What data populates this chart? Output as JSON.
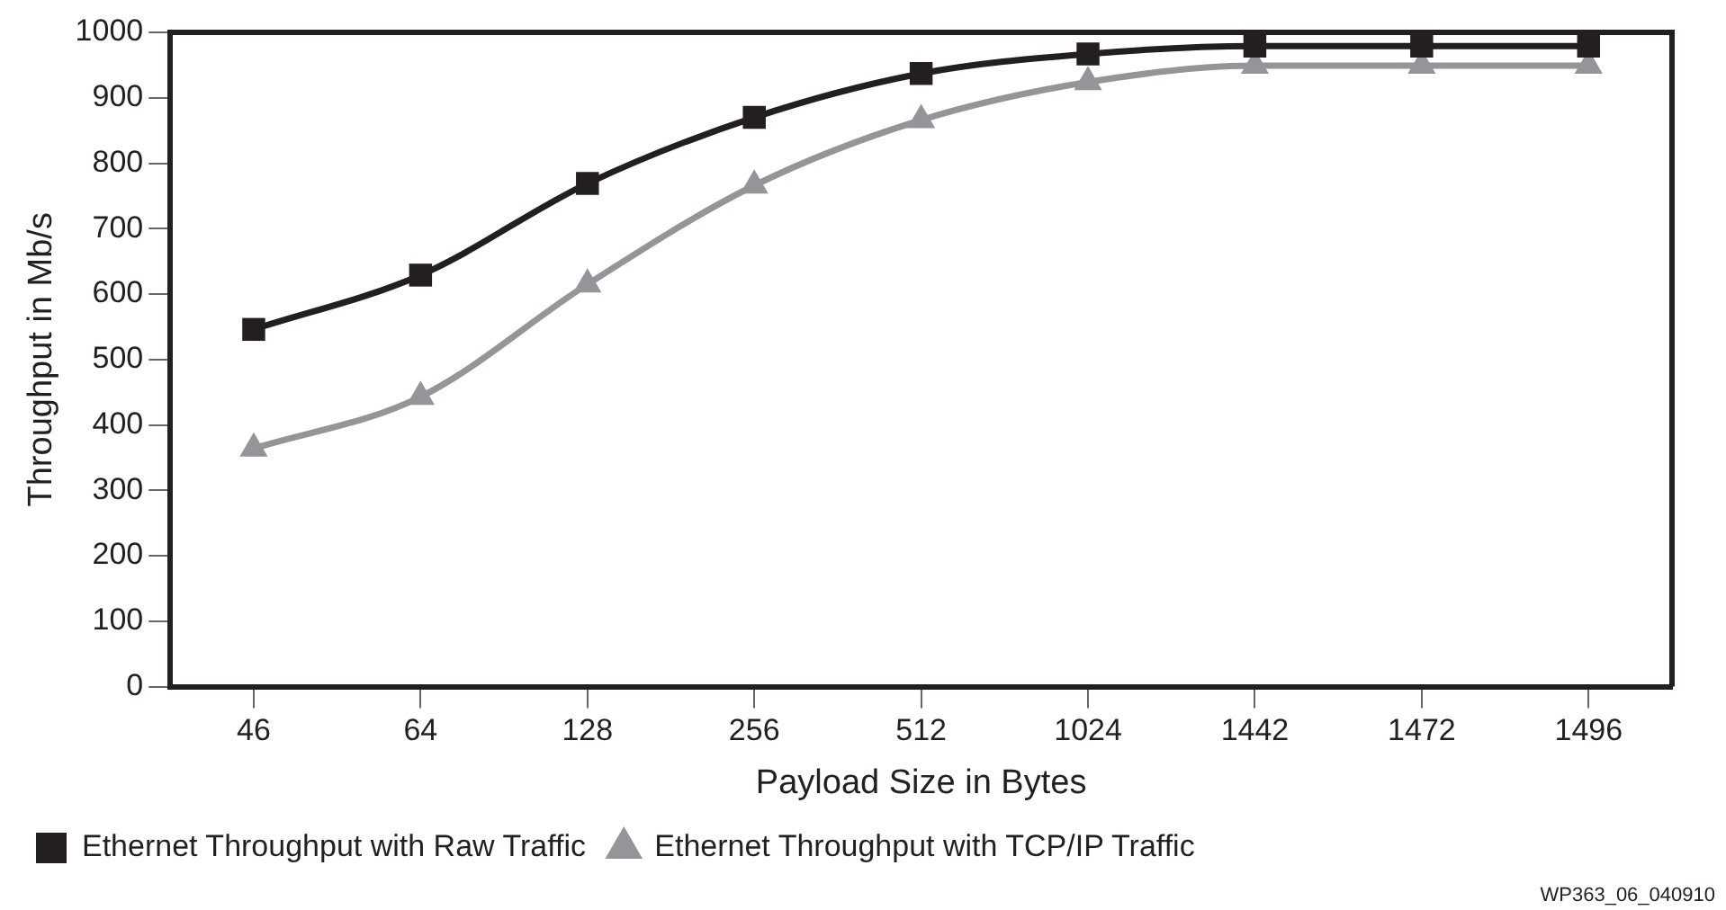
{
  "chart_data": {
    "type": "line",
    "xlabel": "Payload Size in Bytes",
    "ylabel": "Throughput in Mb/s",
    "categories": [
      "46",
      "64",
      "128",
      "256",
      "512",
      "1024",
      "1442",
      "1472",
      "1496"
    ],
    "series": [
      {
        "name": "Ethernet Throughput with Raw Traffic",
        "color": "#231f20",
        "marker": "square",
        "values": [
          546,
          629,
          769,
          870,
          937,
          967,
          979,
          979,
          979
        ]
      },
      {
        "name": "Ethernet Throughput with TCP/IP Traffic",
        "color": "#939598",
        "marker": "triangle",
        "values": [
          364,
          443,
          615,
          766,
          866,
          924,
          949,
          949,
          949
        ]
      }
    ],
    "ylim": [
      0,
      1000
    ],
    "yticks": [
      0,
      100,
      200,
      300,
      400,
      500,
      600,
      700,
      800,
      900,
      1000
    ],
    "grid": false,
    "legend": "bottom",
    "line_style": "solid",
    "annotations": [
      "WP363_06_040910"
    ]
  }
}
